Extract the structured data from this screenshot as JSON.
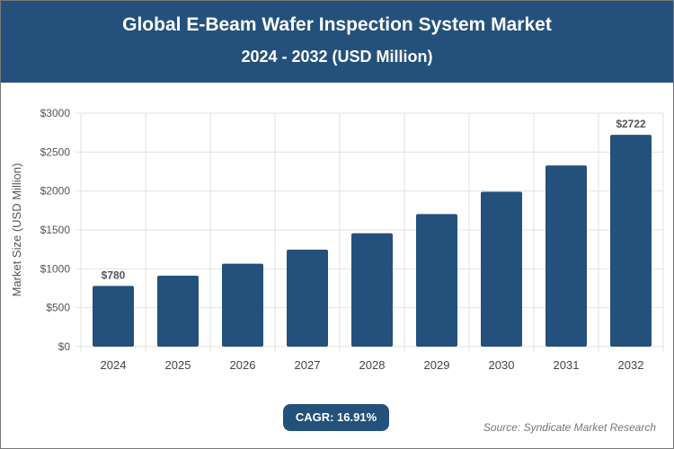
{
  "header": {
    "title": "Global E-Beam Wafer Inspection System Market",
    "subtitle": "2024 - 2032 (USD Million)"
  },
  "chart_data": {
    "type": "bar",
    "categories": [
      "2024",
      "2025",
      "2026",
      "2027",
      "2028",
      "2029",
      "2030",
      "2031",
      "2032"
    ],
    "values": [
      780,
      912,
      1066,
      1246,
      1457,
      1703,
      1991,
      2328,
      2722
    ],
    "data_labels": {
      "0": "$780",
      "8": "$2722"
    },
    "ylabel": "Market Size (USD Million)",
    "xlabel": "",
    "ylim": [
      0,
      3000
    ],
    "yticks": [
      0,
      500,
      1000,
      1500,
      2000,
      2500,
      3000
    ],
    "ytick_labels": [
      "$0",
      "$500",
      "$1000",
      "$1500",
      "$2000",
      "$2500",
      "$3000"
    ],
    "grid": true,
    "bar_color": "#24517b"
  },
  "footer": {
    "cagr": "CAGR: 16.91%",
    "source": "Source: Syndicate Market Research"
  }
}
